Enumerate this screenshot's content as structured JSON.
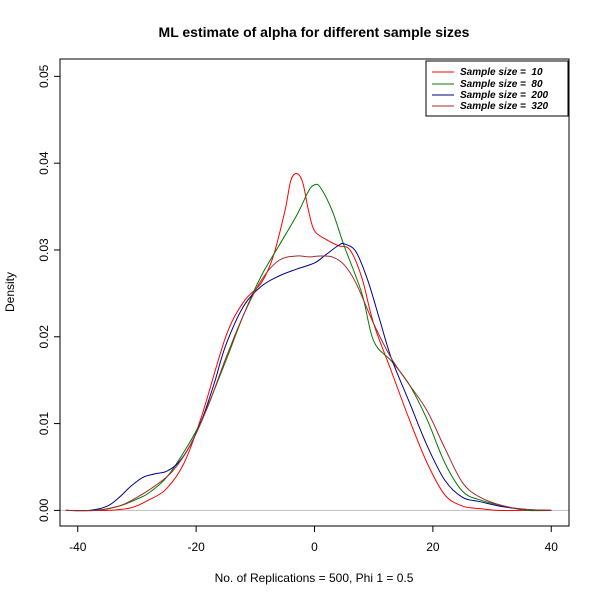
{
  "chart_data": {
    "type": "line",
    "title": "ML estimate of alpha for different sample sizes",
    "xlabel": "No. of Replications = 500, Phi 1 = 0.5",
    "ylabel": "Density",
    "xlim": [
      -43,
      43
    ],
    "ylim": [
      -0.0018,
      0.052
    ],
    "xticks": [
      -40,
      -20,
      0,
      20,
      40
    ],
    "yticks": [
      0.0,
      0.01,
      0.02,
      0.03,
      0.04,
      0.05
    ],
    "ytick_labels": [
      "0.00",
      "0.01",
      "0.02",
      "0.03",
      "0.04",
      "0.05"
    ],
    "grid": false,
    "baseline": {
      "y": 0,
      "color": "#bebebe"
    },
    "legend": {
      "position": "top-right",
      "entries": [
        {
          "label": "Sample size =  10",
          "color": "#ff0000"
        },
        {
          "label": "Sample size =  80",
          "color": "#007a00"
        },
        {
          "label": "Sample size =  200",
          "color": "#00008b"
        },
        {
          "label": "Sample size =  320",
          "color": "#a52a2a"
        }
      ]
    },
    "series": [
      {
        "name": "Sample size =  10",
        "color": "#ff0000",
        "x": [
          -42,
          -35,
          -31,
          -28,
          -25,
          -22,
          -19,
          -15,
          -12,
          -9,
          -7,
          -5,
          -4,
          -3,
          -2,
          -1,
          0,
          2,
          4,
          6,
          8,
          10,
          13,
          16,
          19,
          22,
          25,
          28,
          31,
          35,
          40
        ],
        "y": [
          0.0,
          0.0,
          0.0003,
          0.0012,
          0.0025,
          0.0055,
          0.011,
          0.02,
          0.024,
          0.0262,
          0.0292,
          0.0345,
          0.038,
          0.0388,
          0.0378,
          0.0345,
          0.0322,
          0.0312,
          0.0305,
          0.03,
          0.0268,
          0.0215,
          0.016,
          0.0105,
          0.0055,
          0.0018,
          0.0005,
          0.0002,
          0.0,
          0.0,
          0.0
        ]
      },
      {
        "name": "Sample size =  80",
        "color": "#007a00",
        "x": [
          -42,
          -37,
          -33,
          -30,
          -28,
          -25,
          -22,
          -19,
          -15,
          -12,
          -9,
          -6,
          -3,
          -1,
          0,
          1,
          3,
          5,
          8,
          10,
          13,
          16,
          19,
          22,
          25,
          28,
          32,
          36,
          40
        ],
        "y": [
          0.0,
          0.0,
          0.0005,
          0.0013,
          0.002,
          0.0038,
          0.0068,
          0.0105,
          0.0172,
          0.0225,
          0.027,
          0.0305,
          0.034,
          0.0368,
          0.0375,
          0.0372,
          0.0345,
          0.0305,
          0.025,
          0.0195,
          0.0172,
          0.0145,
          0.0105,
          0.0055,
          0.0022,
          0.0012,
          0.0005,
          0.0,
          0.0
        ]
      },
      {
        "name": "Sample size =  200",
        "color": "#00008b",
        "x": [
          -42,
          -38,
          -35,
          -33,
          -31,
          -29,
          -27,
          -25,
          -23,
          -21,
          -19,
          -17,
          -15,
          -12,
          -9,
          -6,
          -3,
          0,
          2,
          4,
          5,
          7,
          9,
          11,
          13,
          16,
          19,
          22,
          25,
          28,
          32,
          36,
          40
        ],
        "y": [
          0.0,
          0.0,
          0.0005,
          0.0015,
          0.0028,
          0.0038,
          0.0042,
          0.0045,
          0.0055,
          0.0075,
          0.0105,
          0.0145,
          0.019,
          0.0235,
          0.0258,
          0.027,
          0.0278,
          0.0285,
          0.0295,
          0.0305,
          0.0307,
          0.0298,
          0.0265,
          0.022,
          0.0175,
          0.0125,
          0.0075,
          0.0035,
          0.0015,
          0.001,
          0.0004,
          0.0001,
          0.0
        ]
      },
      {
        "name": "Sample size =  320",
        "color": "#a52a2a",
        "x": [
          -42,
          -37,
          -33,
          -30,
          -27,
          -24,
          -21,
          -18,
          -15,
          -12,
          -9,
          -6,
          -3,
          -1,
          1,
          3,
          5,
          7,
          10,
          13,
          16,
          19,
          22,
          25,
          28,
          32,
          36,
          40
        ],
        "y": [
          0.0,
          0.0,
          0.0005,
          0.0015,
          0.0028,
          0.0045,
          0.0075,
          0.012,
          0.0175,
          0.0225,
          0.0265,
          0.0288,
          0.0293,
          0.0292,
          0.0293,
          0.0292,
          0.0283,
          0.0262,
          0.0215,
          0.0175,
          0.0145,
          0.0115,
          0.0072,
          0.0032,
          0.0015,
          0.0005,
          0.0001,
          0.0
        ]
      }
    ]
  }
}
